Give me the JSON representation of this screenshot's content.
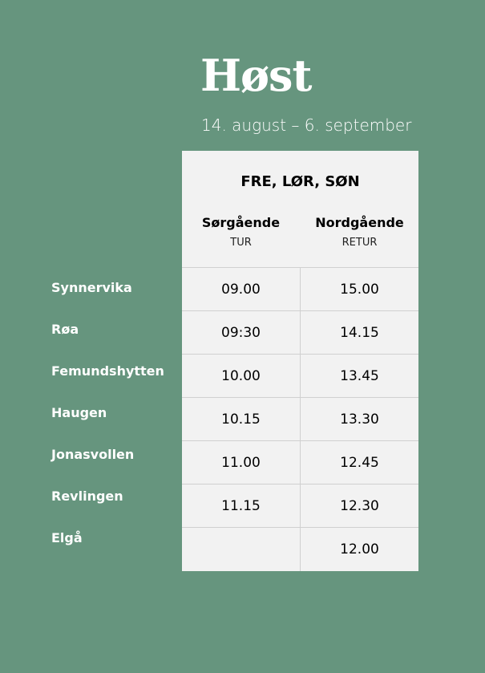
{
  "title": "Høst",
  "subtitle": "14. august – 6. september",
  "table": {
    "days": "FRE, LØR, SØN",
    "columns": [
      {
        "name": "Sørgående",
        "sub": "TUR"
      },
      {
        "name": "Nordgående",
        "sub": "RETUR"
      }
    ],
    "rows": [
      {
        "stop": "Synnervika",
        "tur": "09.00",
        "retur": "15.00"
      },
      {
        "stop": "Røa",
        "tur": "09:30",
        "retur": "14.15"
      },
      {
        "stop": "Femundshytten",
        "tur": "10.00",
        "retur": "13.45"
      },
      {
        "stop": "Haugen",
        "tur": "10.15",
        "retur": "13.30"
      },
      {
        "stop": "Jonasvollen",
        "tur": "11.00",
        "retur": "12.45"
      },
      {
        "stop": "Revlingen",
        "tur": "11.15",
        "retur": "12.30"
      },
      {
        "stop": "Elgå",
        "tur": "",
        "retur": "12.00"
      }
    ]
  },
  "colors": {
    "background": "#66957e",
    "table": "#f2f2f2"
  }
}
